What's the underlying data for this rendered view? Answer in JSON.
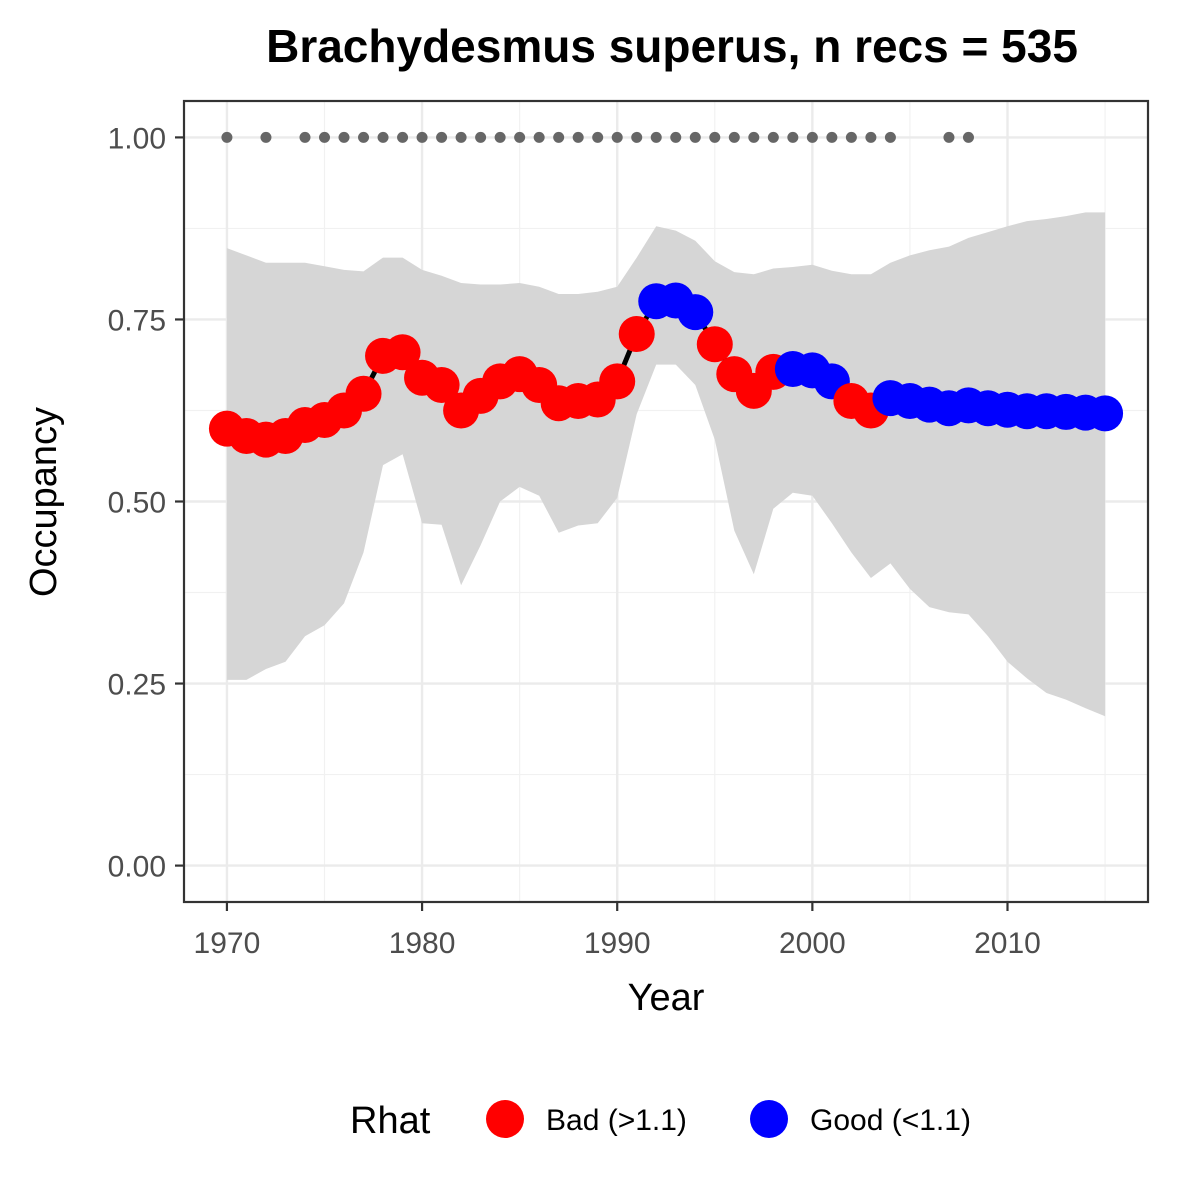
{
  "chart_data": {
    "type": "line",
    "title": "Brachydesmus superus, n recs = 535",
    "xlabel": "Year",
    "ylabel": "Occupancy",
    "xlim": [
      1967.8,
      2017.2
    ],
    "ylim": [
      -0.05,
      1.05
    ],
    "x_ticks": [
      1970,
      1980,
      1990,
      2000,
      2010
    ],
    "x_tick_labels": [
      "1970",
      "1980",
      "1990",
      "2000",
      "2010"
    ],
    "y_ticks": [
      0,
      0.25,
      0.5,
      0.75,
      1.0
    ],
    "y_tick_labels": [
      "0.00",
      "0.25",
      "0.50",
      "0.75",
      "1.00"
    ],
    "grid": true,
    "colors": {
      "bad": "#ff0000",
      "good": "#0000ff",
      "ribbon": "#d6d6d6",
      "records": "#666666",
      "line": "#000000"
    },
    "series": [
      {
        "x": [
          1970,
          1971,
          1972,
          1973,
          1974,
          1975,
          1976,
          1977,
          1978,
          1979,
          1980,
          1981,
          1982,
          1983,
          1984,
          1985,
          1986,
          1987,
          1988,
          1989,
          1990,
          1991,
          1992,
          1993,
          1994,
          1995,
          1996,
          1997,
          1998,
          1999,
          2000,
          2001,
          2002,
          2003,
          2004,
          2005,
          2006,
          2007,
          2008,
          2009,
          2010,
          2011,
          2012,
          2013,
          2014,
          2015
        ],
        "values": [
          0.6,
          0.59,
          0.585,
          0.59,
          0.605,
          0.612,
          0.625,
          0.648,
          0.7,
          0.705,
          0.67,
          0.66,
          0.625,
          0.645,
          0.665,
          0.675,
          0.66,
          0.635,
          0.638,
          0.64,
          0.665,
          0.73,
          0.775,
          0.776,
          0.76,
          0.716,
          0.675,
          0.652,
          0.678,
          0.682,
          0.68,
          0.665,
          0.638,
          0.625,
          0.642,
          0.638,
          0.633,
          0.628,
          0.632,
          0.628,
          0.626,
          0.624,
          0.624,
          0.623,
          0.622,
          0.621
        ],
        "rhat": [
          "Bad",
          "Bad",
          "Bad",
          "Bad",
          "Bad",
          "Bad",
          "Bad",
          "Bad",
          "Bad",
          "Bad",
          "Bad",
          "Bad",
          "Bad",
          "Bad",
          "Bad",
          "Bad",
          "Bad",
          "Bad",
          "Bad",
          "Bad",
          "Bad",
          "Bad",
          "Good",
          "Good",
          "Good",
          "Bad",
          "Bad",
          "Bad",
          "Bad",
          "Good",
          "Good",
          "Good",
          "Bad",
          "Bad",
          "Good",
          "Good",
          "Good",
          "Good",
          "Good",
          "Good",
          "Good",
          "Good",
          "Good",
          "Good",
          "Good",
          "Good"
        ],
        "lower": [
          0.255,
          0.255,
          0.27,
          0.28,
          0.315,
          0.33,
          0.36,
          0.43,
          0.55,
          0.565,
          0.47,
          0.468,
          0.385,
          0.44,
          0.5,
          0.52,
          0.508,
          0.457,
          0.467,
          0.47,
          0.505,
          0.62,
          0.688,
          0.688,
          0.66,
          0.585,
          0.46,
          0.4,
          0.49,
          0.512,
          0.508,
          0.47,
          0.43,
          0.395,
          0.415,
          0.38,
          0.355,
          0.348,
          0.345,
          0.315,
          0.28,
          0.257,
          0.237,
          0.228,
          0.216,
          0.205
        ],
        "upper": [
          0.848,
          0.838,
          0.828,
          0.828,
          0.828,
          0.823,
          0.818,
          0.816,
          0.835,
          0.835,
          0.818,
          0.81,
          0.8,
          0.798,
          0.798,
          0.8,
          0.795,
          0.785,
          0.785,
          0.788,
          0.795,
          0.835,
          0.878,
          0.872,
          0.858,
          0.83,
          0.815,
          0.812,
          0.82,
          0.822,
          0.825,
          0.817,
          0.812,
          0.812,
          0.828,
          0.838,
          0.845,
          0.85,
          0.862,
          0.87,
          0.878,
          0.885,
          0.888,
          0.892,
          0.897,
          0.897
        ]
      }
    ],
    "records": {
      "y": 1.0,
      "years": [
        1970,
        1972,
        1974,
        1975,
        1976,
        1977,
        1978,
        1979,
        1980,
        1981,
        1982,
        1983,
        1984,
        1985,
        1986,
        1987,
        1988,
        1989,
        1990,
        1991,
        1992,
        1993,
        1994,
        1995,
        1996,
        1997,
        1998,
        1999,
        2000,
        2001,
        2002,
        2003,
        2004,
        2007,
        2008
      ]
    },
    "legend": {
      "title": "Rhat",
      "position": "bottom",
      "items": [
        {
          "label": "Bad (>1.1)",
          "color": "#ff0000"
        },
        {
          "label": "Good (<1.1)",
          "color": "#0000ff"
        }
      ]
    }
  }
}
